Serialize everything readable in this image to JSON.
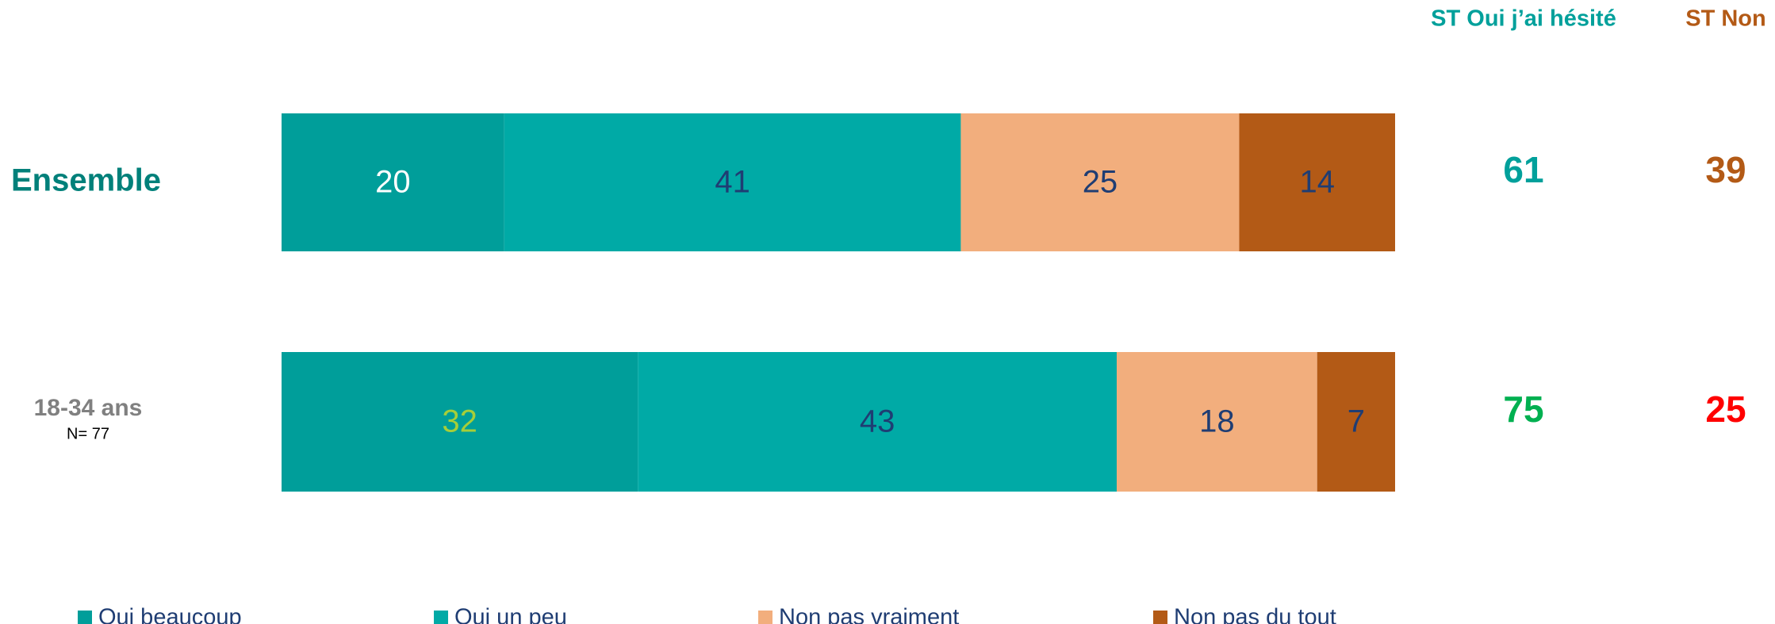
{
  "chart_data": {
    "type": "stacked-bar-horizontal",
    "categories": [
      "Ensemble",
      "18-34 ans"
    ],
    "category_notes": [
      null,
      "N= 77"
    ],
    "category_colors": [
      "#00807a",
      "#808080"
    ],
    "xlim": [
      0,
      100
    ],
    "series": [
      {
        "name": "Oui beaucoup",
        "color": "#009e9a",
        "values": [
          20,
          32
        ],
        "label_colors": [
          "#ffffff",
          "#a6ce39"
        ]
      },
      {
        "name": "Oui un peu",
        "color": "#00aaa6",
        "values": [
          41,
          43
        ],
        "label_colors": [
          "#1f3d73",
          "#1f3d73"
        ]
      },
      {
        "name": "Non pas vraiment",
        "color": "#f2ae7d",
        "values": [
          25,
          18
        ],
        "label_colors": [
          "#1f3d73",
          "#1f3d73"
        ]
      },
      {
        "name": "Non pas du tout",
        "color": "#b35a16",
        "values": [
          14,
          7
        ],
        "label_colors": [
          "#1f3d73",
          "#1f3d73"
        ]
      }
    ],
    "summary": [
      {
        "name": "ST Oui j’ai hésité",
        "color": "#00a09b",
        "values": [
          61,
          75
        ],
        "value_colors": [
          "#00a09b",
          "#00b050"
        ]
      },
      {
        "name": "ST Non",
        "color": "#b35a16",
        "values": [
          39,
          25
        ],
        "value_colors": [
          "#b35a16",
          "#ff0000"
        ]
      }
    ]
  }
}
